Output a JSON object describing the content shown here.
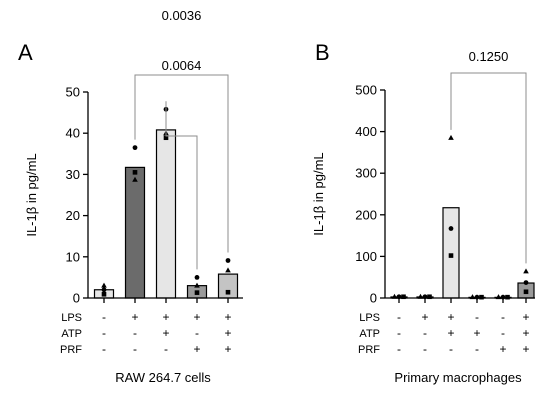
{
  "chart_data": [
    {
      "type": "bar",
      "panel_label": "A",
      "title": "",
      "xlabel": "RAW 264.7 cells",
      "ylabel": "IL-1β in pg/mL",
      "ylim": [
        0,
        50
      ],
      "yticks": [
        0,
        10,
        20,
        30,
        40,
        50
      ],
      "categories": [
        "1",
        "2",
        "3",
        "4",
        "5"
      ],
      "condition_rows": [
        {
          "label": "LPS",
          "values": [
            "-",
            "+",
            "+",
            "+",
            "+"
          ]
        },
        {
          "label": "ATP",
          "values": [
            "-",
            "-",
            "+",
            "-",
            "+"
          ]
        },
        {
          "label": "PRF",
          "values": [
            "-",
            "-",
            "-",
            "+",
            "+"
          ]
        }
      ],
      "values": [
        2.0,
        31.7,
        40.8,
        3.0,
        5.8
      ],
      "bar_colors": [
        "#e6e6e6",
        "#6b6b6b",
        "#e6e6e6",
        "#9a9a9a",
        "#c4c4c4"
      ],
      "points": [
        [
          {
            "shape": "triangle",
            "y": 3.0
          },
          {
            "shape": "circle",
            "y": 2.0
          },
          {
            "shape": "square",
            "y": 0.9
          }
        ],
        [
          {
            "shape": "circle",
            "y": 36.5
          },
          {
            "shape": "square",
            "y": 30.5
          },
          {
            "shape": "triangle",
            "y": 28.7
          }
        ],
        [
          {
            "shape": "circle",
            "y": 45.8
          },
          {
            "shape": "square",
            "y": 38.9
          },
          {
            "shape": "triangle",
            "y": 40.0
          }
        ],
        [
          {
            "shape": "circle",
            "y": 5.0
          },
          {
            "shape": "triangle",
            "y": 3.0
          },
          {
            "shape": "square",
            "y": 1.3
          }
        ],
        [
          {
            "shape": "circle",
            "y": 9.1
          },
          {
            "shape": "triangle",
            "y": 6.7
          },
          {
            "shape": "square",
            "y": 1.4
          }
        ]
      ],
      "comparisons": [
        {
          "from": 2,
          "to": 3,
          "label": "0.0064"
        },
        {
          "from": 1,
          "to": 4,
          "label": "0.0036"
        }
      ]
    },
    {
      "type": "bar",
      "panel_label": "B",
      "title": "",
      "xlabel": "Primary macrophages",
      "ylabel": "IL-1β in pg/mL",
      "ylim": [
        0,
        500
      ],
      "yticks": [
        0,
        100,
        200,
        300,
        400,
        500
      ],
      "categories": [
        "1",
        "2",
        "3",
        "4",
        "5",
        "6"
      ],
      "condition_rows": [
        {
          "label": "LPS",
          "values": [
            "-",
            "+",
            "+",
            "-",
            "-",
            "+"
          ]
        },
        {
          "label": "ATP",
          "values": [
            "-",
            "-",
            "+",
            "+",
            "-",
            "+"
          ]
        },
        {
          "label": "PRF",
          "values": [
            "-",
            "-",
            "-",
            "-",
            "+",
            "+"
          ]
        }
      ],
      "values": [
        2.5,
        2.5,
        217,
        1.5,
        1.5,
        36
      ],
      "bar_colors": [
        "#e6e6e6",
        "#e6e6e6",
        "#e6e6e6",
        "#e6e6e6",
        "#e6e6e6",
        "#9a9a9a"
      ],
      "points": [
        [
          {
            "shape": "triangle",
            "y": 3
          },
          {
            "shape": "circle",
            "y": 3
          },
          {
            "shape": "square",
            "y": 3
          }
        ],
        [
          {
            "shape": "triangle",
            "y": 3
          },
          {
            "shape": "circle",
            "y": 3
          },
          {
            "shape": "square",
            "y": 3
          }
        ],
        [
          {
            "shape": "triangle",
            "y": 385
          },
          {
            "shape": "circle",
            "y": 167
          },
          {
            "shape": "square",
            "y": 102
          }
        ],
        [
          {
            "shape": "triangle",
            "y": 2
          },
          {
            "shape": "circle",
            "y": 2
          },
          {
            "shape": "square",
            "y": 2
          }
        ],
        [
          {
            "shape": "triangle",
            "y": 2
          },
          {
            "shape": "circle",
            "y": 2
          },
          {
            "shape": "square",
            "y": 2
          }
        ],
        [
          {
            "shape": "triangle",
            "y": 64
          },
          {
            "shape": "circle",
            "y": 37
          },
          {
            "shape": "square",
            "y": 15
          }
        ]
      ],
      "comparisons": [
        {
          "from": 2,
          "to": 5,
          "label": "0.1250"
        }
      ]
    }
  ]
}
